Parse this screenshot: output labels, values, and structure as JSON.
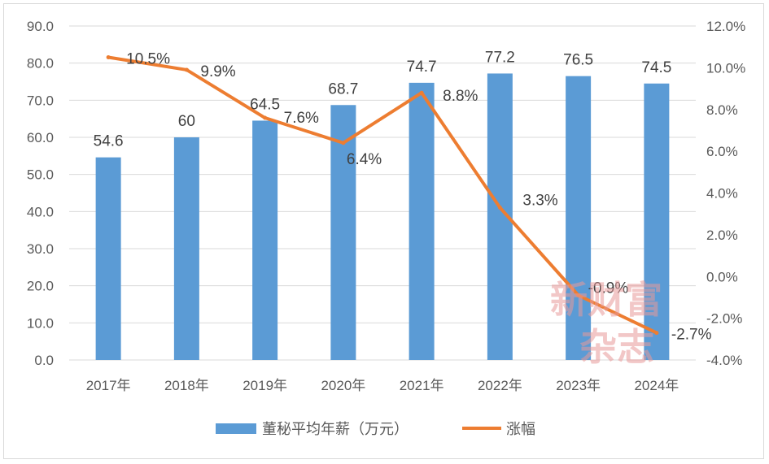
{
  "chart_data": {
    "type": "bar+line",
    "categories": [
      "2017年",
      "2018年",
      "2019年",
      "2020年",
      "2021年",
      "2022年",
      "2023年",
      "2024年"
    ],
    "series": [
      {
        "name": "董秘平均年薪（万元）",
        "type": "bar",
        "axis": "left",
        "color": "#5b9bd5",
        "values": [
          54.6,
          60,
          64.5,
          68.7,
          74.7,
          77.2,
          76.5,
          74.5
        ],
        "labels": [
          "54.6",
          "60",
          "64.5",
          "68.7",
          "74.7",
          "77.2",
          "76.5",
          "74.5"
        ]
      },
      {
        "name": "涨幅",
        "type": "line",
        "axis": "right",
        "color": "#ed7d31",
        "values": [
          10.5,
          9.9,
          7.6,
          6.4,
          8.8,
          3.3,
          -0.9,
          -2.7
        ],
        "labels": [
          "10.5%",
          "9.9%",
          "7.6%",
          "6.4%",
          "8.8%",
          "3.3%",
          "-0.9%",
          "-2.7%"
        ]
      }
    ],
    "y_left": {
      "range": [
        0,
        90
      ],
      "ticks": [
        "0.0",
        "10.0",
        "20.0",
        "30.0",
        "40.0",
        "50.0",
        "60.0",
        "70.0",
        "80.0",
        "90.0"
      ]
    },
    "y_right": {
      "range": [
        -4,
        12
      ],
      "ticks": [
        "-4.0%",
        "-2.0%",
        "0.0%",
        "2.0%",
        "4.0%",
        "6.0%",
        "8.0%",
        "10.0%",
        "12.0%"
      ]
    },
    "grid": true,
    "legend_position": "bottom"
  },
  "watermark": {
    "line1": "新财富",
    "line2": "杂志"
  }
}
